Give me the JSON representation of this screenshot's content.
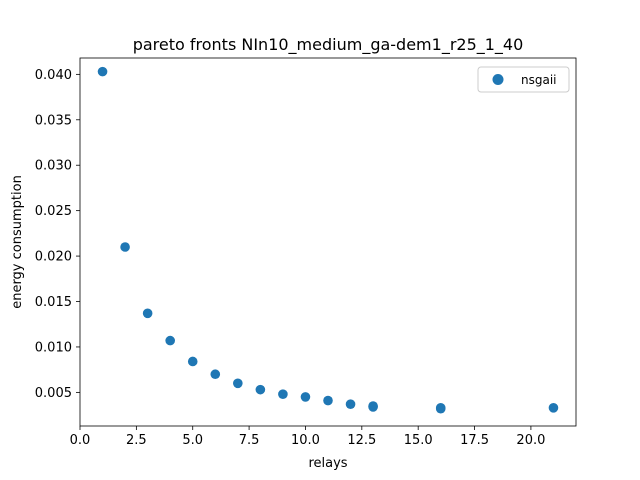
{
  "chart_data": {
    "type": "scatter",
    "title": "pareto fronts NIn10_medium_ga-dem1_r25_1_40",
    "xlabel": "relays",
    "ylabel": "energy consumption",
    "xlim": [
      0,
      22
    ],
    "ylim": [
      0.0013,
      0.0418
    ],
    "x_ticks": [
      0,
      2.5,
      5,
      7.5,
      10,
      12.5,
      15,
      17.5,
      20
    ],
    "x_tick_labels": [
      "0.0",
      "2.5",
      "5.0",
      "7.5",
      "10.0",
      "12.5",
      "15.0",
      "17.5",
      "20.0"
    ],
    "y_ticks": [
      0.005,
      0.01,
      0.015,
      0.02,
      0.025,
      0.03,
      0.035,
      0.04
    ],
    "y_tick_labels": [
      "0.005",
      "0.010",
      "0.015",
      "0.020",
      "0.025",
      "0.030",
      "0.035",
      "0.040"
    ],
    "grid": false,
    "legend_position": "top-right",
    "series": [
      {
        "name": "nsgaii",
        "color": "#1f77b4",
        "points": [
          {
            "x": 1,
            "y": 0.0403
          },
          {
            "x": 2,
            "y": 0.021
          },
          {
            "x": 3,
            "y": 0.0137
          },
          {
            "x": 4,
            "y": 0.0107
          },
          {
            "x": 5,
            "y": 0.0084
          },
          {
            "x": 6,
            "y": 0.007
          },
          {
            "x": 7,
            "y": 0.006
          },
          {
            "x": 8,
            "y": 0.0053
          },
          {
            "x": 9,
            "y": 0.0048
          },
          {
            "x": 10,
            "y": 0.0045
          },
          {
            "x": 11,
            "y": 0.0041
          },
          {
            "x": 12,
            "y": 0.0037
          },
          {
            "x": 13,
            "y": 0.0035
          },
          {
            "x": 13,
            "y": 0.0034
          },
          {
            "x": 16,
            "y": 0.0033
          },
          {
            "x": 16,
            "y": 0.0032
          },
          {
            "x": 21,
            "y": 0.0033
          }
        ]
      }
    ]
  }
}
